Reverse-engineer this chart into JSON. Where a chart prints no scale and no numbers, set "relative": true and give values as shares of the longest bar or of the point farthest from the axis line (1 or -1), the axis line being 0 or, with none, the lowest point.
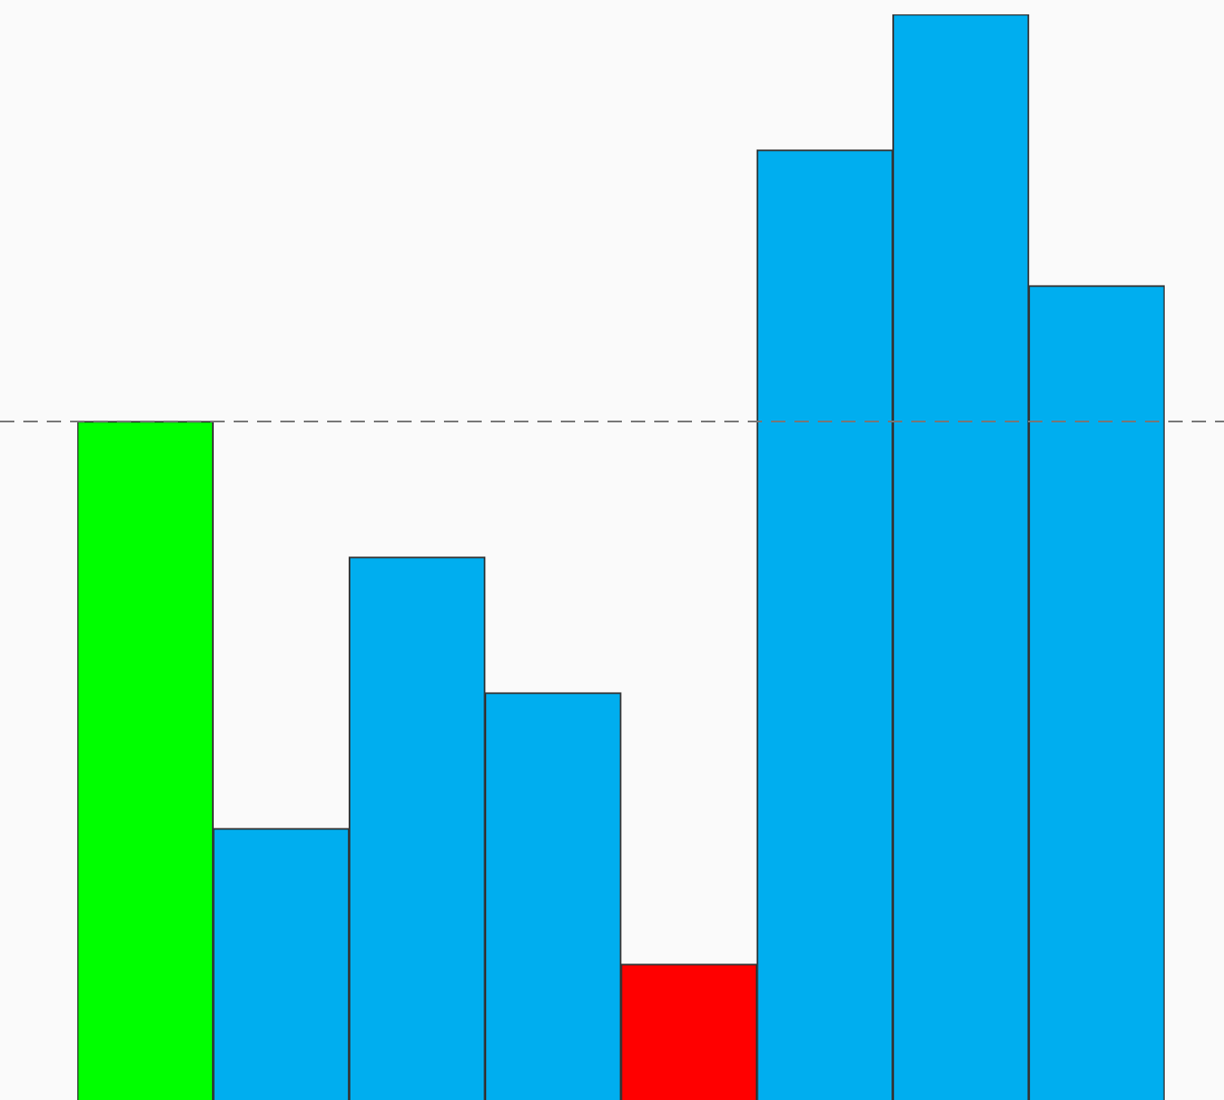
{
  "chart_data": {
    "type": "bar",
    "relative": true,
    "categories": [
      null,
      null,
      null,
      null,
      null,
      null,
      null,
      null
    ],
    "values": [
      0.625,
      0.25,
      0.5,
      0.375,
      0.125,
      0.875,
      1,
      0.75
    ],
    "colors": [
      "#00ff00",
      "#00aeef",
      "#00aeef",
      "#00aeef",
      "#ff0000",
      "#00aeef",
      "#00aeef",
      "#00aeef"
    ],
    "ref_lines": [
      {
        "axis": "y",
        "value": 0.625,
        "color": "#777777",
        "line_style": "dashed"
      }
    ],
    "legend": false,
    "tick_labels": false
  }
}
